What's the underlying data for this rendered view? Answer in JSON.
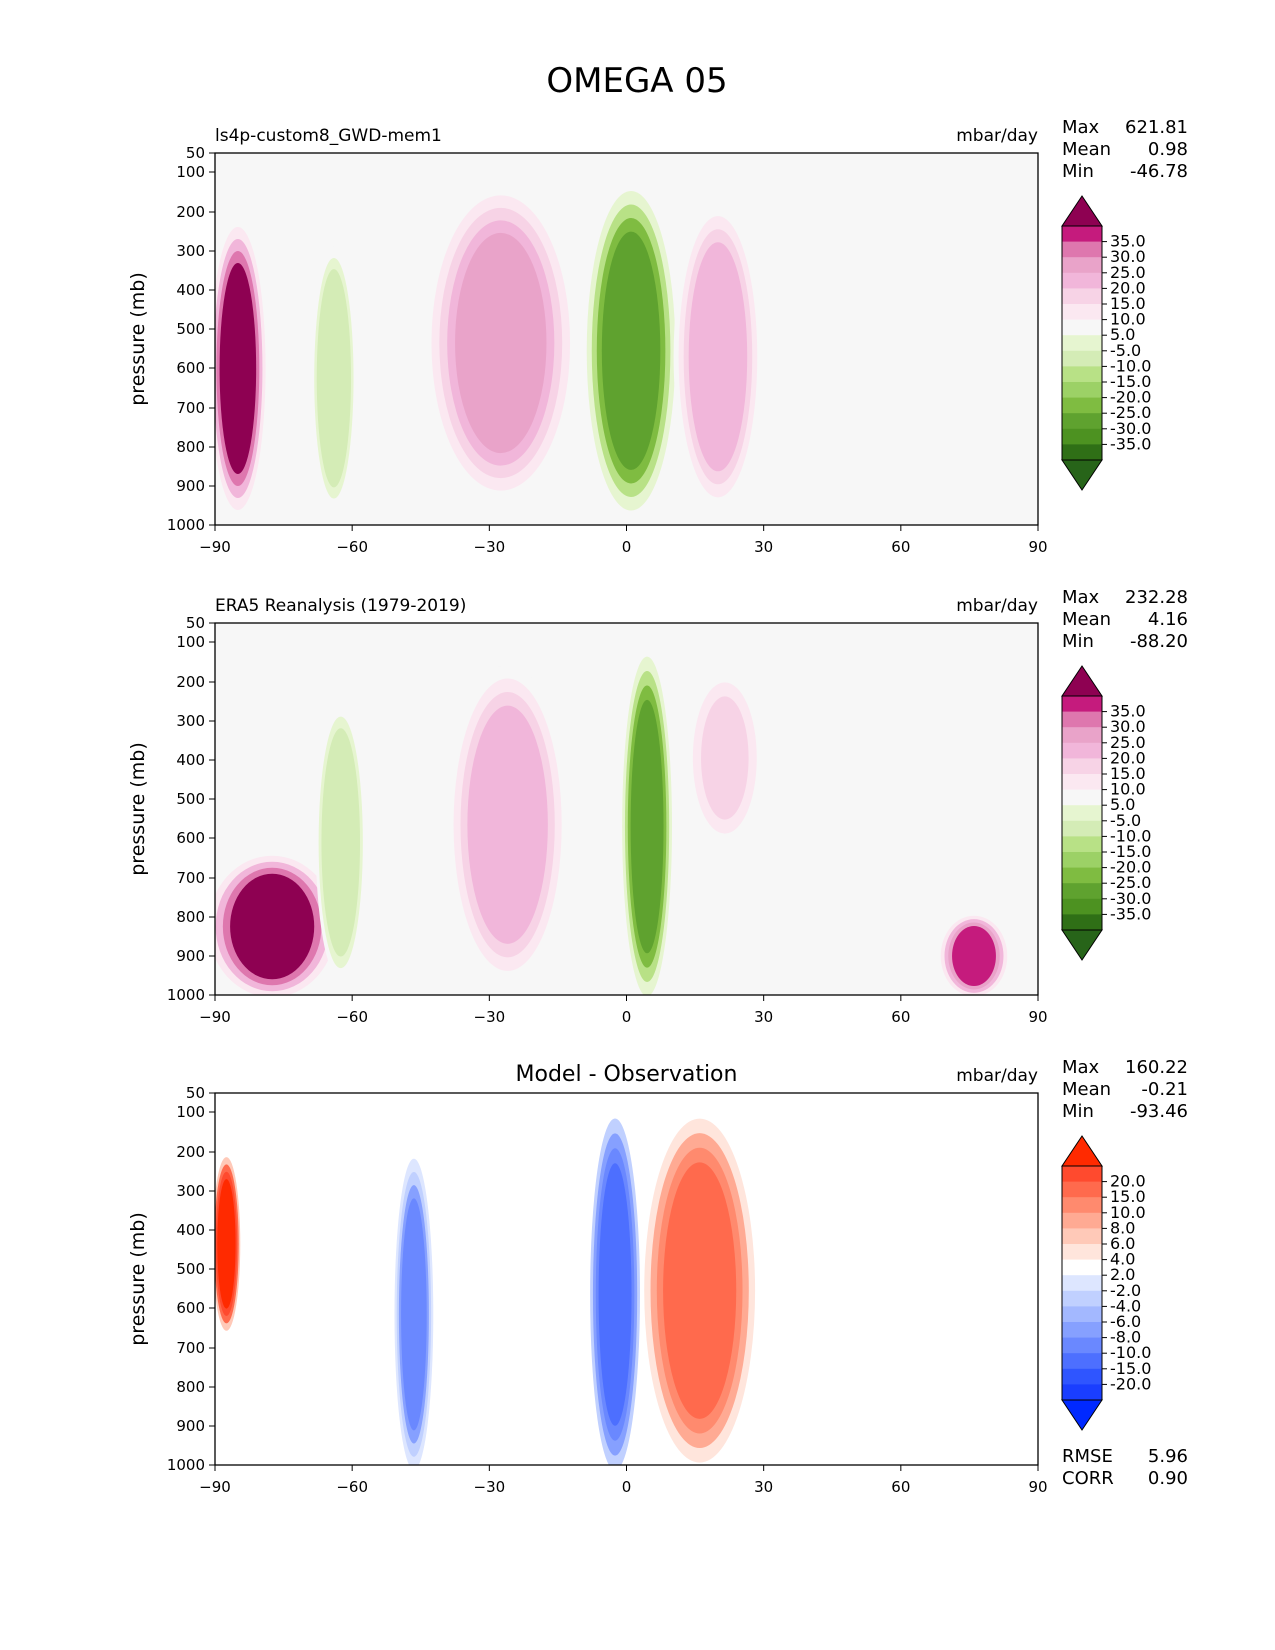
{
  "figure_title": "OMEGA 05",
  "chart_data": [
    {
      "type": "contour",
      "title": "",
      "left_label": "ls4p-custom8_GWD-mem1",
      "units": "mbar/day",
      "stats": [
        {
          "label": "Max",
          "value": "621.81"
        },
        {
          "label": "Mean",
          "value": "0.98"
        },
        {
          "label": "Min",
          "value": "-46.78"
        }
      ],
      "xlabel": "",
      "ylabel": "pressure (mb)",
      "xticks": [
        "−90",
        "−60",
        "−30",
        "0",
        "30",
        "60",
        "90"
      ],
      "yticks": [
        "50",
        "100",
        "200",
        "300",
        "400",
        "500",
        "600",
        "700",
        "800",
        "900",
        "1000"
      ],
      "colorbar": {
        "labels": [
          "35.0",
          "30.0",
          "25.0",
          "20.0",
          "15.0",
          "10.0",
          "5.0",
          "-5.0",
          "-10.0",
          "-15.0",
          "-20.0",
          "-25.0",
          "-30.0",
          "-35.0"
        ],
        "colors": [
          "#8e0152",
          "#c51b7d",
          "#de77ae",
          "#e9a3c9",
          "#f1b6da",
          "#f7d3e6",
          "#fbe8f1",
          "#f7f7f7",
          "#e6f5d0",
          "#d4ecb6",
          "#b8e186",
          "#9cd166",
          "#7fbc41",
          "#5fa22f",
          "#4d9221",
          "#2f6f16",
          "#276419"
        ]
      },
      "features": [
        {
          "name": "southern-polar-descent",
          "lat": [
            -90,
            -80
          ],
          "p": [
            250,
            950
          ],
          "value": 35
        },
        {
          "name": "southern-midlat-ascent",
          "lat": [
            -68,
            -60
          ],
          "p": [
            300,
            950
          ],
          "value": -15
        },
        {
          "name": "subtropical-descent-south",
          "lat": [
            -40,
            -15
          ],
          "p": [
            170,
            900
          ],
          "value": 22
        },
        {
          "name": "itcz-ascent",
          "lat": [
            -7,
            9
          ],
          "p": [
            160,
            950
          ],
          "value": -35
        },
        {
          "name": "subtropical-descent-north",
          "lat": [
            12,
            28
          ],
          "p": [
            190,
            950
          ],
          "value": 15
        }
      ]
    },
    {
      "type": "contour",
      "title": "",
      "left_label": "ERA5 Reanalysis (1979-2019)",
      "units": "mbar/day",
      "stats": [
        {
          "label": "Max",
          "value": "232.28"
        },
        {
          "label": "Mean",
          "value": "4.16"
        },
        {
          "label": "Min",
          "value": "-88.20"
        }
      ],
      "xlabel": "",
      "ylabel": "pressure (mb)",
      "xticks": [
        "−90",
        "−60",
        "−30",
        "0",
        "30",
        "60",
        "90"
      ],
      "yticks": [
        "50",
        "100",
        "200",
        "300",
        "400",
        "500",
        "600",
        "700",
        "800",
        "900",
        "1000"
      ],
      "colorbar": {
        "labels": [
          "35.0",
          "30.0",
          "25.0",
          "20.0",
          "15.0",
          "10.0",
          "5.0",
          "-5.0",
          "-10.0",
          "-15.0",
          "-20.0",
          "-25.0",
          "-30.0",
          "-35.0"
        ],
        "colors": [
          "#8e0152",
          "#c51b7d",
          "#de77ae",
          "#e9a3c9",
          "#f1b6da",
          "#f7d3e6",
          "#fbe8f1",
          "#f7f7f7",
          "#e6f5d0",
          "#d4ecb6",
          "#b8e186",
          "#9cd166",
          "#7fbc41",
          "#5fa22f",
          "#4d9221",
          "#2f6f16",
          "#276419"
        ]
      },
      "features": [
        {
          "name": "antarctic-descent",
          "lat": [
            -89,
            -66
          ],
          "p": [
            650,
            1000
          ],
          "value": 35
        },
        {
          "name": "southern-midlat-ascent",
          "lat": [
            -67,
            -58
          ],
          "p": [
            270,
            950
          ],
          "value": -15
        },
        {
          "name": "subtropical-descent-south",
          "lat": [
            -37,
            -15
          ],
          "p": [
            170,
            960
          ],
          "value": 18
        },
        {
          "name": "itcz-ascent",
          "lat": [
            0,
            9
          ],
          "p": [
            150,
            990
          ],
          "value": -35
        },
        {
          "name": "subtropical-descent-north",
          "lat": [
            15,
            28
          ],
          "p": [
            190,
            600
          ],
          "value": 12
        },
        {
          "name": "arctic-descent",
          "lat": [
            70,
            82
          ],
          "p": [
            800,
            1000
          ],
          "value": 30
        }
      ]
    },
    {
      "type": "contour",
      "title": "Model - Observation",
      "left_label": "",
      "units": "mbar/day",
      "stats": [
        {
          "label": "Max",
          "value": "160.22"
        },
        {
          "label": "Mean",
          "value": "-0.21"
        },
        {
          "label": "Min",
          "value": "-93.46"
        }
      ],
      "extra_stats": [
        {
          "label": "RMSE",
          "value": "5.96"
        },
        {
          "label": "CORR",
          "value": "0.90"
        }
      ],
      "xlabel": "",
      "ylabel": "pressure (mb)",
      "xticks": [
        "−90",
        "−60",
        "−30",
        "0",
        "30",
        "60",
        "90"
      ],
      "yticks": [
        "50",
        "100",
        "200",
        "300",
        "400",
        "500",
        "600",
        "700",
        "800",
        "900",
        "1000"
      ],
      "colorbar": {
        "labels": [
          "20.0",
          "15.0",
          "10.0",
          "8.0",
          "6.0",
          "4.0",
          "2.0",
          "-2.0",
          "-4.0",
          "-6.0",
          "-8.0",
          "-10.0",
          "-15.0",
          "-20.0"
        ],
        "colors": [
          "#ff2a00",
          "#ff4a2e",
          "#ff6a4d",
          "#ff8a6e",
          "#ffaa93",
          "#ffc9b8",
          "#ffe5dc",
          "#ffffff",
          "#dde6ff",
          "#c0d0ff",
          "#a3b8ff",
          "#86a0ff",
          "#6a88ff",
          "#4d6fff",
          "#2f55ff",
          "#1a3eff",
          "#0029ff"
        ]
      },
      "features": [
        {
          "name": "southern-polar-positive",
          "lat": [
            -90,
            -85
          ],
          "p": [
            220,
            650
          ],
          "value": 20
        },
        {
          "name": "southern-midlat-negative",
          "lat": [
            -50,
            -43
          ],
          "p": [
            230,
            1000
          ],
          "value": -12
        },
        {
          "name": "tropical-negative",
          "lat": [
            -7,
            2
          ],
          "p": [
            130,
            1000
          ],
          "value": -18
        },
        {
          "name": "northern-subtropical-positive",
          "lat": [
            6,
            26
          ],
          "p": [
            130,
            980
          ],
          "value": 12
        }
      ]
    }
  ]
}
